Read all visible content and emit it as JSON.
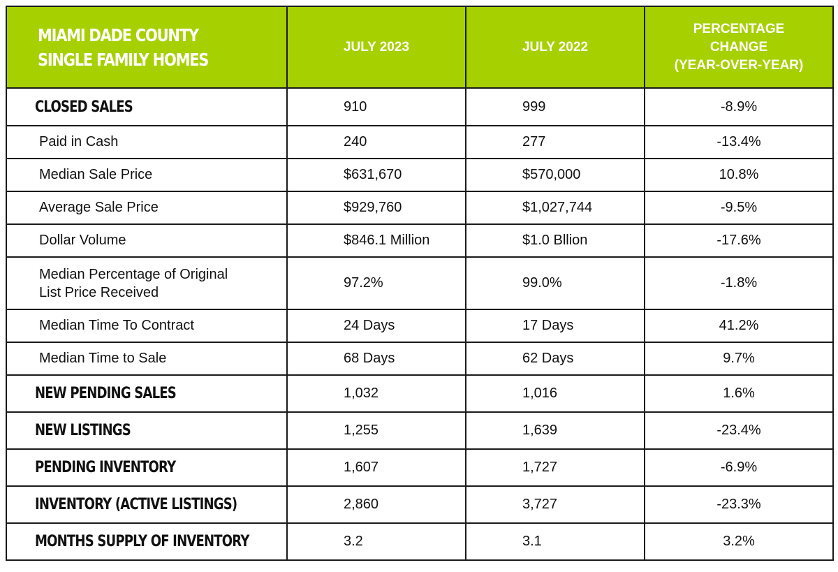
{
  "header": {
    "title_line1": "MIAMI DADE COUNTY",
    "title_line2": "SINGLE FAMILY HOMES",
    "col1": "JULY 2023",
    "col2": "JULY 2022",
    "col3_line1": "PERCENTAGE",
    "col3_line2": "CHANGE",
    "col3_line3": "(YEAR-OVER-YEAR)"
  },
  "rows": [
    {
      "label": "CLOSED SALES",
      "july2023": "910",
      "july2022": "999",
      "change": "-8.9%"
    },
    {
      "label": "Paid in Cash",
      "july2023": "240",
      "july2022": "277",
      "change": "-13.4%"
    },
    {
      "label": "Median Sale Price",
      "july2023": "$631,670",
      "july2022": "$570,000",
      "change": "10.8%"
    },
    {
      "label": "Average Sale Price",
      "july2023": "$929,760",
      "july2022": "$1,027,744",
      "change": "-9.5%"
    },
    {
      "label": "Dollar Volume",
      "july2023": "$846.1 Million",
      "july2022": "$1.0 Bllion",
      "change": "-17.6%"
    },
    {
      "label_line1": "Median Percentage of Original",
      "label_line2": "List Price Received",
      "july2023": "97.2%",
      "july2022": "99.0%",
      "change": "-1.8%"
    },
    {
      "label": "Median Time To Contract",
      "july2023": "24 Days",
      "july2022": "17 Days",
      "change": "41.2%"
    },
    {
      "label": "Median Time to Sale",
      "july2023": "68 Days",
      "july2022": "62 Days",
      "change": "9.7%"
    },
    {
      "label": "NEW PENDING SALES",
      "july2023": "1,032",
      "july2022": "1,016",
      "change": "1.6%"
    },
    {
      "label": "NEW LISTINGS",
      "july2023": "1,255",
      "july2022": "1,639",
      "change": "-23.4%"
    },
    {
      "label": "PENDING INVENTORY",
      "july2023": "1,607",
      "july2022": "1,727",
      "change": "-6.9%"
    },
    {
      "label": "INVENTORY (ACTIVE LISTINGS)",
      "july2023": "2,860",
      "july2022": "3,727",
      "change": "-23.3%"
    },
    {
      "label": "MONTHS SUPPLY OF INVENTORY",
      "july2023": "3.2",
      "july2022": "3.1",
      "change": "3.2%"
    }
  ],
  "colors": {
    "header_bg": "#a6d000",
    "header_text": "#ffffff",
    "border": "#1a1a1a",
    "body_text": "#111111"
  }
}
